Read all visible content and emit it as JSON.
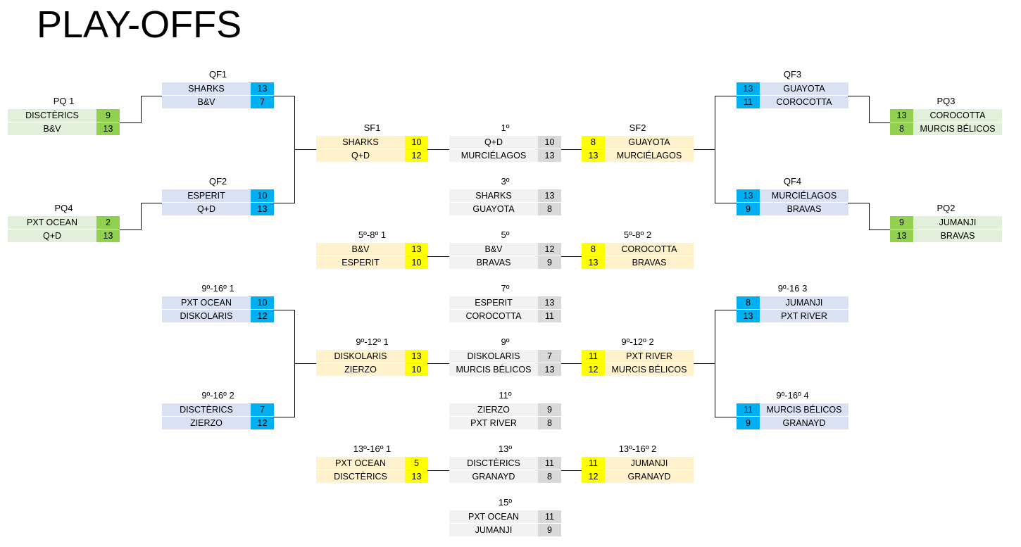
{
  "title": "PLAY-OFFS",
  "colors": {
    "green": {
      "light": "#e2efda",
      "dark": "#92d050"
    },
    "blue": {
      "light": "#d9e1f2",
      "dark": "#00b0f0"
    },
    "yellow": {
      "light": "#fff2cc",
      "dark": "#ffff00"
    },
    "gray": {
      "light": "#f2f2f2",
      "dark": "#d9d9d9"
    }
  },
  "matches": [
    {
      "id": "pq1",
      "label": "PQ 1",
      "color": "green",
      "teams": [
        {
          "name": "DISCTÈRICS",
          "score": "9"
        },
        {
          "name": "B&V",
          "score": "13"
        }
      ]
    },
    {
      "id": "pq4",
      "label": "PQ4",
      "color": "green",
      "teams": [
        {
          "name": "PXT OCEAN",
          "score": "2"
        },
        {
          "name": "Q+D",
          "score": "13"
        }
      ]
    },
    {
      "id": "qf1",
      "label": "QF1",
      "color": "blue",
      "teams": [
        {
          "name": "SHARKS",
          "score": "13"
        },
        {
          "name": "B&V",
          "score": "7"
        }
      ]
    },
    {
      "id": "qf2",
      "label": "QF2",
      "color": "blue",
      "teams": [
        {
          "name": "ESPERIT",
          "score": "10"
        },
        {
          "name": "Q+D",
          "score": "13"
        }
      ]
    },
    {
      "id": "r916_1",
      "label": "9º-16º 1",
      "color": "blue",
      "teams": [
        {
          "name": "PXT OCEAN",
          "score": "10"
        },
        {
          "name": "DISKOLARIS",
          "score": "12"
        }
      ]
    },
    {
      "id": "r916_2",
      "label": "9º-16º 2",
      "color": "blue",
      "teams": [
        {
          "name": "DISCTÈRICS",
          "score": "7"
        },
        {
          "name": "ZIERZO",
          "score": "12"
        }
      ]
    },
    {
      "id": "sf1",
      "label": "SF1",
      "color": "yellow",
      "teams": [
        {
          "name": "SHARKS",
          "score": "10"
        },
        {
          "name": "Q+D",
          "score": "12"
        }
      ]
    },
    {
      "id": "r58_1",
      "label": "5º-8º 1",
      "color": "yellow",
      "teams": [
        {
          "name": "B&V",
          "score": "13"
        },
        {
          "name": "ESPERIT",
          "score": "10"
        }
      ]
    },
    {
      "id": "r912_1",
      "label": "9º-12º 1",
      "color": "yellow",
      "teams": [
        {
          "name": "DISKOLARIS",
          "score": "13"
        },
        {
          "name": "ZIERZO",
          "score": "10"
        }
      ]
    },
    {
      "id": "r1316_1",
      "label": "13º-16º 1",
      "color": "yellow",
      "teams": [
        {
          "name": "PXT OCEAN",
          "score": "5"
        },
        {
          "name": "DISCTÈRICS",
          "score": "13"
        }
      ]
    },
    {
      "id": "p1",
      "label": "1º",
      "color": "gray",
      "teams": [
        {
          "name": "Q+D",
          "score": "10"
        },
        {
          "name": "MURCIÉLAGOS",
          "score": "13"
        }
      ]
    },
    {
      "id": "p3",
      "label": "3º",
      "color": "gray",
      "teams": [
        {
          "name": "SHARKS",
          "score": "13"
        },
        {
          "name": "GUAYOTA",
          "score": "8"
        }
      ]
    },
    {
      "id": "p5",
      "label": "5º",
      "color": "gray",
      "teams": [
        {
          "name": "B&V",
          "score": "12"
        },
        {
          "name": "BRAVAS",
          "score": "9"
        }
      ]
    },
    {
      "id": "p7",
      "label": "7º",
      "color": "gray",
      "teams": [
        {
          "name": "ESPERIT",
          "score": "13"
        },
        {
          "name": "COROCOTTA",
          "score": "11"
        }
      ]
    },
    {
      "id": "p9",
      "label": "9º",
      "color": "gray",
      "teams": [
        {
          "name": "DISKOLARIS",
          "score": "7"
        },
        {
          "name": "MURCIS BÉLICOS",
          "score": "13"
        }
      ]
    },
    {
      "id": "p11",
      "label": "11º",
      "color": "gray",
      "teams": [
        {
          "name": "ZIERZO",
          "score": "9"
        },
        {
          "name": "PXT RIVER",
          "score": "8"
        }
      ]
    },
    {
      "id": "p13",
      "label": "13º",
      "color": "gray",
      "teams": [
        {
          "name": "DISCTÈRICS",
          "score": "11"
        },
        {
          "name": "GRANAYD",
          "score": "8"
        }
      ]
    },
    {
      "id": "p15",
      "label": "15º",
      "color": "gray",
      "teams": [
        {
          "name": "PXT OCEAN",
          "score": "11"
        },
        {
          "name": "JUMANJI",
          "score": "9"
        }
      ]
    },
    {
      "id": "sf2",
      "label": "SF2",
      "color": "yellow",
      "teams": [
        {
          "name": "GUAYOTA",
          "score": "8"
        },
        {
          "name": "MURCIÉLAGOS",
          "score": "13"
        }
      ]
    },
    {
      "id": "r58_2",
      "label": "5º-8º 2",
      "color": "yellow",
      "teams": [
        {
          "name": "COROCOTTA",
          "score": "8"
        },
        {
          "name": "BRAVAS",
          "score": "13"
        }
      ]
    },
    {
      "id": "r912_2",
      "label": "9º-12º 2",
      "color": "yellow",
      "teams": [
        {
          "name": "PXT RIVER",
          "score": "11"
        },
        {
          "name": "MURCIS BÉLICOS",
          "score": "12"
        }
      ]
    },
    {
      "id": "r1316_2",
      "label": "13º-16º 2",
      "color": "yellow",
      "teams": [
        {
          "name": "JUMANJI",
          "score": "11"
        },
        {
          "name": "GRANAYD",
          "score": "12"
        }
      ]
    },
    {
      "id": "qf3",
      "label": "QF3",
      "color": "blue",
      "teams": [
        {
          "name": "GUAYOTA",
          "score": "13"
        },
        {
          "name": "COROCOTTA",
          "score": "11"
        }
      ]
    },
    {
      "id": "qf4",
      "label": "QF4",
      "color": "blue",
      "teams": [
        {
          "name": "MURCIÉLAGOS",
          "score": "13"
        },
        {
          "name": "BRAVAS",
          "score": "9"
        }
      ]
    },
    {
      "id": "r916_3",
      "label": "9º-16 3",
      "color": "blue",
      "teams": [
        {
          "name": "JUMANJI",
          "score": "8"
        },
        {
          "name": "PXT RIVER",
          "score": "13"
        }
      ]
    },
    {
      "id": "r916_4",
      "label": "9º-16º 4",
      "color": "blue",
      "teams": [
        {
          "name": "MURCIS BÉLICOS",
          "score": "11"
        },
        {
          "name": "GRANAYD",
          "score": "9"
        }
      ]
    },
    {
      "id": "pq3",
      "label": "PQ3",
      "color": "green",
      "teams": [
        {
          "name": "COROCOTTA",
          "score": "13"
        },
        {
          "name": "MURCIS BÉLICOS",
          "score": "8"
        }
      ]
    },
    {
      "id": "pq2",
      "label": "PQ2",
      "color": "green",
      "teams": [
        {
          "name": "JUMANJI",
          "score": "9"
        },
        {
          "name": "BRAVAS",
          "score": "13"
        }
      ]
    }
  ]
}
